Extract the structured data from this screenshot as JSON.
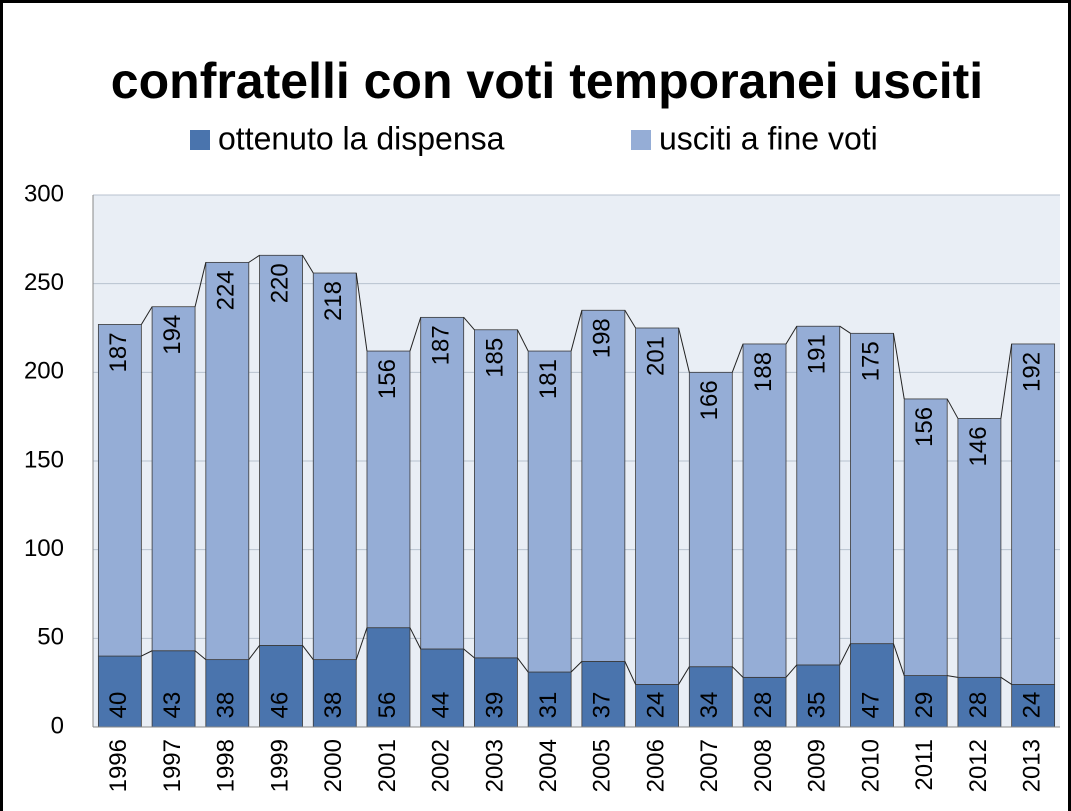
{
  "chart_data": {
    "type": "stacked_bar",
    "title": "confratelli con voti temporanei usciti",
    "categories": [
      "1996",
      "1997",
      "1998",
      "1999",
      "2000",
      "2001",
      "2002",
      "2003",
      "2004",
      "2005",
      "2006",
      "2007",
      "2008",
      "2009",
      "2010",
      "2011",
      "2012",
      "2013"
    ],
    "series": [
      {
        "name": "ottenuto la dispensa",
        "color": "#4a74ad",
        "values": [
          40,
          43,
          38,
          46,
          38,
          56,
          44,
          39,
          31,
          37,
          24,
          34,
          28,
          35,
          47,
          29,
          28,
          24
        ]
      },
      {
        "name": "usciti a fine voti",
        "color": "#95add6",
        "values": [
          187,
          194,
          224,
          220,
          218,
          156,
          187,
          185,
          181,
          198,
          201,
          166,
          188,
          191,
          175,
          156,
          146,
          192
        ]
      }
    ],
    "ylim": [
      0,
      300
    ],
    "yticks": [
      0,
      50,
      100,
      150,
      200,
      250,
      300
    ],
    "grid": true,
    "legend": "top"
  }
}
